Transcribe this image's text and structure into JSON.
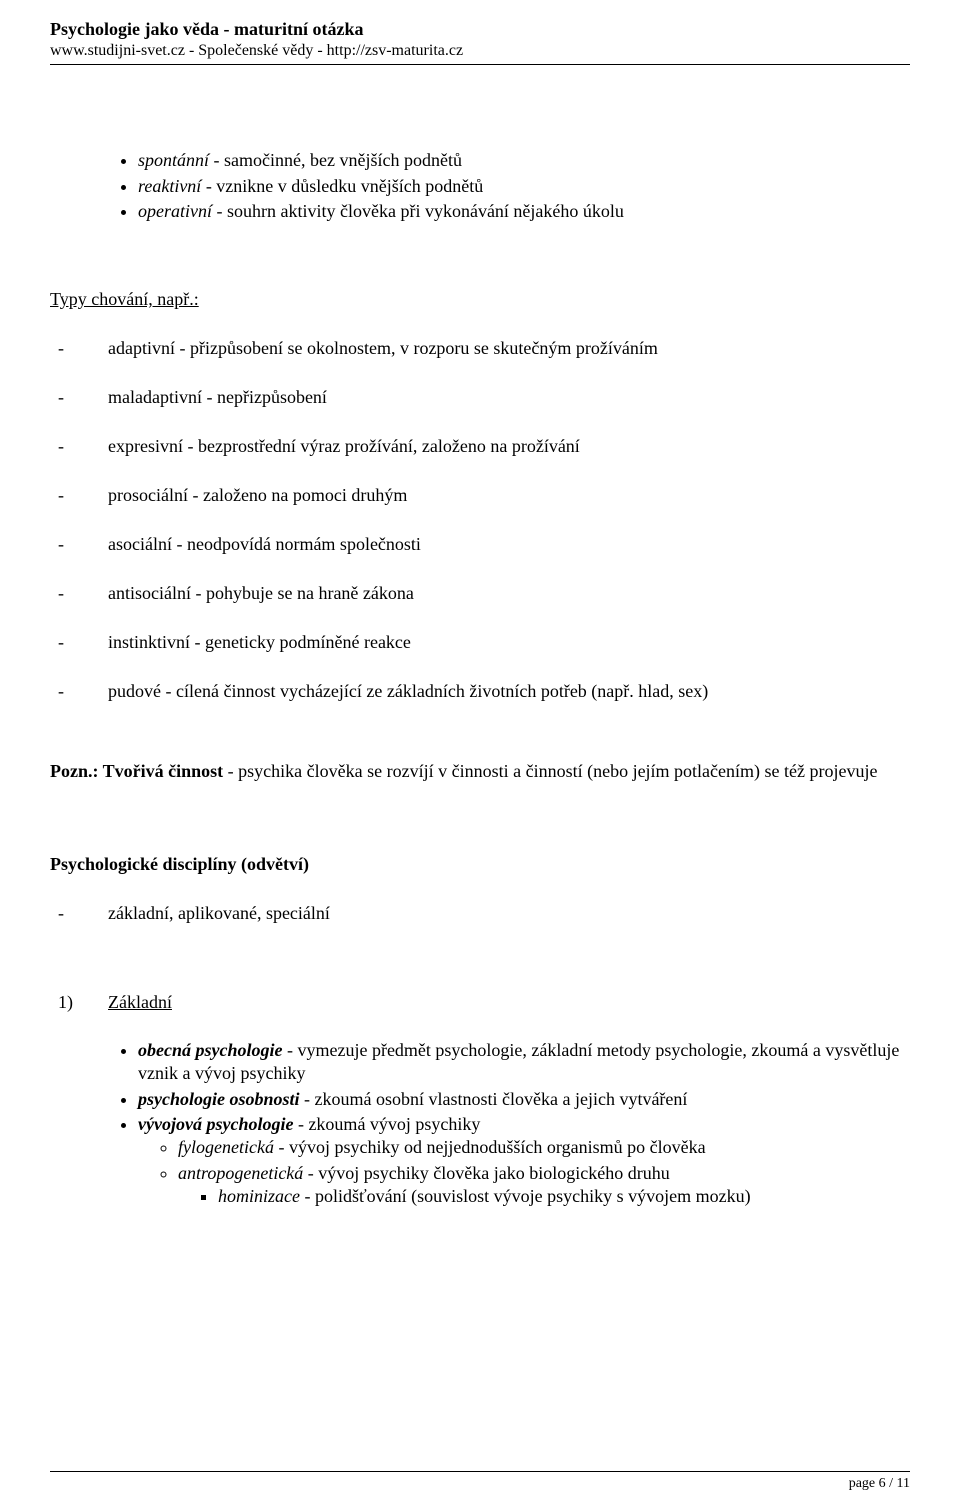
{
  "header": {
    "title": "Psychologie jako věda - maturitní otázka",
    "subtitle": "www.studijni-svet.cz  - Společenské vědy - http://zsv-maturita.cz"
  },
  "top_bullets": [
    {
      "term": "spontánní",
      "rest": " - samočinné, bez vnějších podnětů"
    },
    {
      "term": "reaktivní",
      "rest": " - vznikne v důsledku vnějších podnětů"
    },
    {
      "term": "operativní",
      "rest": " - souhrn aktivity člověka při vykonávání nějakého úkolu"
    }
  ],
  "typy_heading": "Typy chování, např.:",
  "typy_items": [
    "adaptivní - přizpůsobení se okolnostem, v rozporu se skutečným prožíváním",
    "maladaptivní - nepřizpůsobení",
    "expresivní - bezprostřední výraz prožívání, založeno na prožívání",
    "prosociální - založeno na pomoci druhým",
    "asociální - neodpovídá normám společnosti",
    "antisociální - pohybuje se na hraně zákona",
    "instinktivní - geneticky podmíněné reakce",
    "pudové - cílená činnost vycházející ze základních životních potřeb (např. hlad, sex)"
  ],
  "pozn": {
    "lead": "Pozn.: Tvořivá činnost",
    "rest": " - psychika člověka se rozvíjí v činnosti a činností (nebo jejím potlačením) se též projevuje"
  },
  "disc_heading": "Psychologické disciplíny (odvětví)",
  "disc_sub": "základní, aplikované, speciální",
  "zakladni": {
    "num": "1)",
    "label": "Základní",
    "items": {
      "i1_term": "obecná psychologie",
      "i1_rest": " - vymezuje předmět psychologie, základní metody psychologie, zkoumá a vysvětluje vznik a vývoj psychiky",
      "i2_term": "psychologie osobnosti",
      "i2_rest": " - zkoumá osobní vlastnosti člověka a jejich vytváření",
      "i3_term": "vývojová psychologie",
      "i3_rest": " - zkoumá vývoj psychiky",
      "i3a_term": "fylogenetická",
      "i3a_rest": " - vývoj psychiky od nejjednodušších organismů po člověka",
      "i3b_term": "antropogenetická",
      "i3b_rest": " - vývoj psychiky člověka jako biologického druhu",
      "i3b1_term": "hominizace",
      "i3b1_rest": " - polidšťování (souvislost vývoje psychiky s vývojem mozku)"
    }
  },
  "footer": "page 6 / 11"
}
